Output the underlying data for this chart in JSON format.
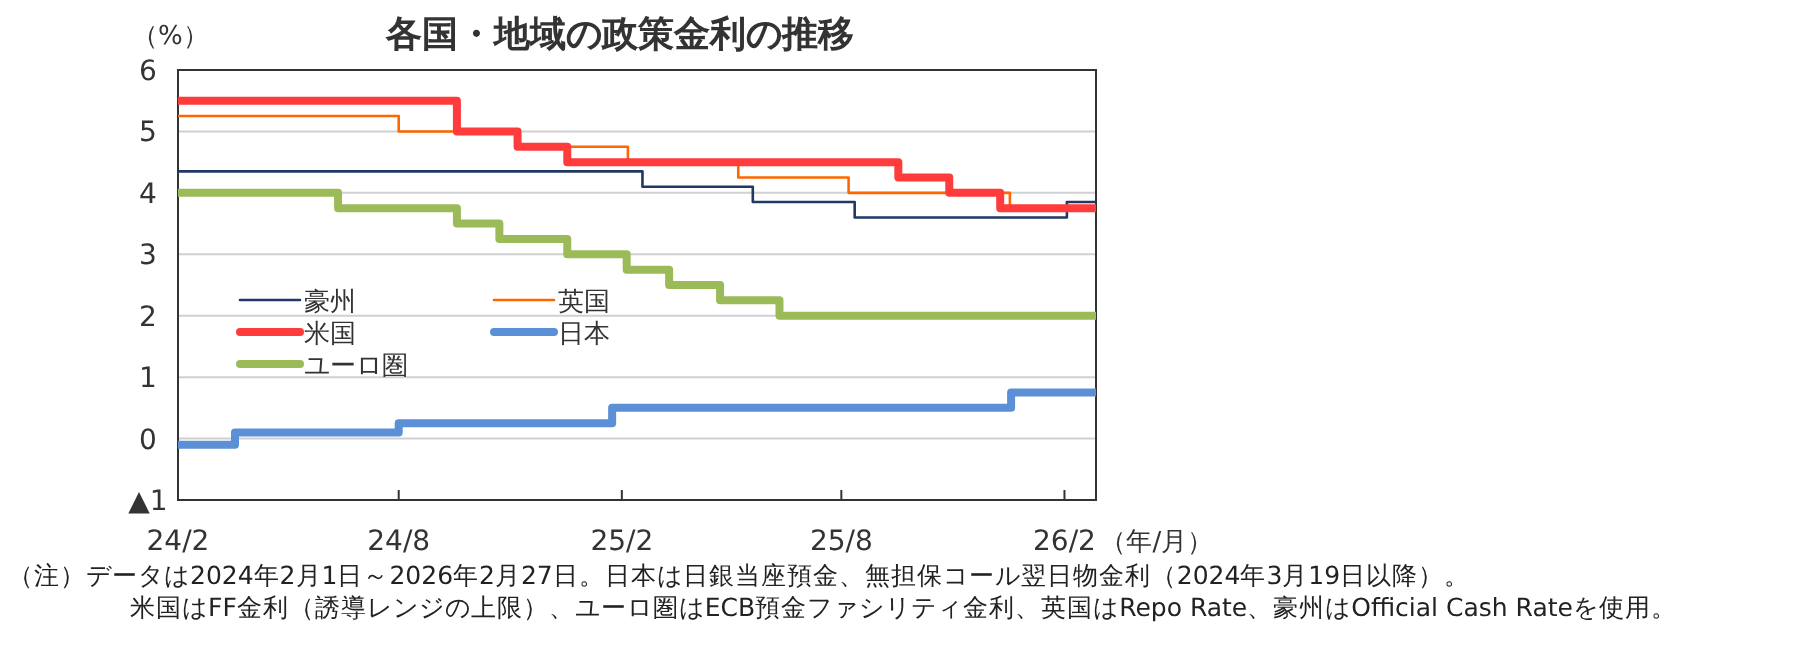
{
  "chart_data": {
    "type": "step",
    "title": "各国・地域の政策金利の推移",
    "ylabel": "（%）",
    "xlabel": "（年/月）",
    "xlim": [
      "2024-02-01",
      "2026-02-27"
    ],
    "xticks": [
      {
        "value": "2024-02",
        "label": "24/2"
      },
      {
        "value": "2024-08",
        "label": "24/8"
      },
      {
        "value": "2025-02",
        "label": "25/2"
      },
      {
        "value": "2025-08",
        "label": "25/8"
      },
      {
        "value": "2026-02",
        "label": "26/2"
      }
    ],
    "ylim": [
      -1,
      6
    ],
    "yticks": [
      {
        "value": -1,
        "label": "▲1"
      },
      0,
      1,
      2,
      3,
      4,
      5,
      6
    ],
    "grid": "y",
    "legend": "left",
    "line_style": "solid",
    "marker": "none",
    "series": [
      {
        "name": "豪州",
        "color": "#1f3864",
        "x": [
          "2024-02-01",
          "2025-02-18",
          "2025-05-20",
          "2025-08-12",
          "2026-02-03",
          "2026-02-27"
        ],
        "values": [
          4.35,
          4.1,
          3.85,
          3.6,
          3.85,
          3.85
        ]
      },
      {
        "name": "英国",
        "color": "#ff6600",
        "x": [
          "2024-02-01",
          "2024-08-01",
          "2024-11-07",
          "2025-02-06",
          "2025-05-08",
          "2025-08-07",
          "2025-12-18",
          "2026-02-27"
        ],
        "values": [
          5.25,
          5.0,
          4.75,
          4.5,
          4.25,
          4.0,
          3.75,
          3.75
        ]
      },
      {
        "name": "米国",
        "color": "#ff3b3b",
        "x": [
          "2024-02-01",
          "2024-09-18",
          "2024-11-07",
          "2024-12-18",
          "2025-09-17",
          "2025-10-29",
          "2025-12-10",
          "2026-02-27"
        ],
        "values": [
          5.5,
          5.0,
          4.75,
          4.5,
          4.25,
          4.0,
          3.75,
          3.75
        ]
      },
      {
        "name": "日本",
        "color": "#5b8fd6",
        "x": [
          "2024-02-01",
          "2024-03-19",
          "2024-08-01",
          "2025-01-24",
          "2025-12-19",
          "2026-02-27"
        ],
        "values": [
          -0.1,
          0.1,
          0.25,
          0.5,
          0.75,
          0.75
        ]
      },
      {
        "name": "ユーロ圏",
        "color": "#9bbb59",
        "x": [
          "2024-02-01",
          "2024-06-12",
          "2024-09-18",
          "2024-10-23",
          "2024-12-18",
          "2025-02-05",
          "2025-03-12",
          "2025-04-23",
          "2025-06-11",
          "2026-02-27"
        ],
        "values": [
          4.0,
          3.75,
          3.5,
          3.25,
          3.0,
          2.75,
          2.5,
          2.25,
          2.0,
          2.0
        ]
      }
    ],
    "annotations": [
      "（注）データは2024年2月1日～2026年2月27日。日本は日銀当座預金、無担保コール翌日物金利（2024年3月19日以降）。",
      "米国はFF金利（誘導レンジの上限）、ユーロ圏はECB預金ファシリティ金利、英国はRepo Rate、豪州はOfficial Cash Rateを使用。"
    ]
  }
}
